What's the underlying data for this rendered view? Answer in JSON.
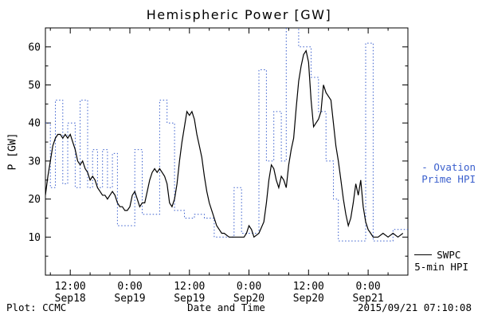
{
  "title": "Hemispheric Power [GW]",
  "ylabel": "P [GW]",
  "xlabel": "Date and Time",
  "footer": {
    "left": "Plot: CCMC",
    "right": "2015/09/21 07:10:08"
  },
  "legend": {
    "ovation": {
      "line1": "- Ovation",
      "line2": "Prime HPI",
      "color": "#3a5fcd"
    },
    "swpc": {
      "line1": "SWPC",
      "line2": "5-min HPI",
      "color": "#000000"
    }
  },
  "chart_data": {
    "type": "line",
    "title": "Hemispheric Power [GW]",
    "xlabel": "Date and Time",
    "ylabel": "P [GW]",
    "xlim": [
      0,
      73
    ],
    "ylim": [
      0,
      65
    ],
    "x_unit": "hours",
    "grid": false,
    "legend_position": "right-outside",
    "yticks": [
      10,
      20,
      30,
      40,
      50,
      60
    ],
    "y_minor": [
      5,
      15,
      25,
      35,
      45,
      55
    ],
    "xticks": [
      {
        "t": 5,
        "time": "12:00",
        "date": "Sep18"
      },
      {
        "t": 17,
        "time": "0:00",
        "date": "Sep19"
      },
      {
        "t": 29,
        "time": "12:00",
        "date": "Sep19"
      },
      {
        "t": 41,
        "time": "0:00",
        "date": "Sep20"
      },
      {
        "t": 53,
        "time": "12:00",
        "date": "Sep20"
      },
      {
        "t": 65,
        "time": "0:00",
        "date": "Sep21"
      }
    ],
    "x_minor": [
      1,
      9,
      13,
      21,
      25,
      33,
      37,
      45,
      49,
      57,
      61,
      69
    ],
    "series": [
      {
        "name": "Ovation Prime HPI",
        "color": "#3a5fcd",
        "interp": "step",
        "dash": "1.5 2.5",
        "width": 1,
        "points": [
          [
            0,
            40
          ],
          [
            1,
            23
          ],
          [
            2,
            46
          ],
          [
            3.5,
            24
          ],
          [
            4.5,
            40
          ],
          [
            6,
            23
          ],
          [
            7,
            46
          ],
          [
            8.5,
            23
          ],
          [
            9.5,
            33
          ],
          [
            10.5,
            23
          ],
          [
            11.5,
            33
          ],
          [
            12.5,
            23
          ],
          [
            13.5,
            32
          ],
          [
            14.5,
            13
          ],
          [
            17,
            13
          ],
          [
            18,
            33
          ],
          [
            19.5,
            16
          ],
          [
            21,
            16
          ],
          [
            23,
            46
          ],
          [
            24.5,
            40
          ],
          [
            26,
            17
          ],
          [
            28,
            15
          ],
          [
            30,
            16
          ],
          [
            32,
            15
          ],
          [
            34,
            10
          ],
          [
            36,
            10
          ],
          [
            38,
            23
          ],
          [
            39.5,
            11
          ],
          [
            41,
            11
          ],
          [
            43,
            54
          ],
          [
            44.5,
            30
          ],
          [
            46,
            43
          ],
          [
            47.5,
            30
          ],
          [
            48.5,
            66
          ],
          [
            51,
            60
          ],
          [
            53.5,
            52
          ],
          [
            55,
            43
          ],
          [
            56.5,
            30
          ],
          [
            58,
            20
          ],
          [
            59,
            9
          ],
          [
            63.5,
            9
          ],
          [
            64.5,
            61
          ],
          [
            66,
            9
          ],
          [
            68,
            9
          ],
          [
            70,
            12
          ],
          [
            72,
            12
          ]
        ]
      },
      {
        "name": "SWPC 5-min HPI",
        "color": "#000000",
        "interp": "linear",
        "dash": null,
        "width": 1.2,
        "points": [
          [
            0,
            21
          ],
          [
            0.5,
            26
          ],
          [
            1,
            30
          ],
          [
            1.5,
            34
          ],
          [
            2,
            36
          ],
          [
            2.5,
            37
          ],
          [
            3,
            37
          ],
          [
            3.5,
            36
          ],
          [
            4,
            37
          ],
          [
            4.5,
            36
          ],
          [
            5,
            37
          ],
          [
            5.5,
            35
          ],
          [
            6,
            33
          ],
          [
            6.5,
            30
          ],
          [
            7,
            29
          ],
          [
            7.5,
            30
          ],
          [
            8,
            28
          ],
          [
            8.5,
            27
          ],
          [
            9,
            25
          ],
          [
            9.5,
            26
          ],
          [
            10,
            25
          ],
          [
            10.5,
            23
          ],
          [
            11,
            22
          ],
          [
            11.5,
            21
          ],
          [
            12,
            21
          ],
          [
            12.5,
            20
          ],
          [
            13,
            21
          ],
          [
            13.5,
            22
          ],
          [
            14,
            21
          ],
          [
            14.5,
            19
          ],
          [
            15,
            18
          ],
          [
            15.5,
            18
          ],
          [
            16,
            17
          ],
          [
            16.5,
            17
          ],
          [
            17,
            18
          ],
          [
            17.5,
            21
          ],
          [
            18,
            22
          ],
          [
            18.5,
            20
          ],
          [
            19,
            18
          ],
          [
            19.5,
            19
          ],
          [
            20,
            19
          ],
          [
            20.5,
            22
          ],
          [
            21,
            25
          ],
          [
            21.5,
            27
          ],
          [
            22,
            28
          ],
          [
            22.5,
            27
          ],
          [
            23,
            28
          ],
          [
            23.5,
            27
          ],
          [
            24,
            26
          ],
          [
            24.5,
            24
          ],
          [
            25,
            19
          ],
          [
            25.5,
            18
          ],
          [
            26,
            20
          ],
          [
            26.5,
            24
          ],
          [
            27,
            30
          ],
          [
            27.5,
            35
          ],
          [
            28,
            39
          ],
          [
            28.5,
            43
          ],
          [
            29,
            42
          ],
          [
            29.5,
            43
          ],
          [
            30,
            41
          ],
          [
            30.5,
            37
          ],
          [
            31,
            34
          ],
          [
            31.5,
            31
          ],
          [
            32,
            26
          ],
          [
            32.5,
            22
          ],
          [
            33,
            19
          ],
          [
            33.5,
            17
          ],
          [
            34,
            15
          ],
          [
            34.5,
            13
          ],
          [
            35,
            12
          ],
          [
            35.5,
            11
          ],
          [
            36,
            11
          ],
          [
            37,
            10
          ],
          [
            38,
            10
          ],
          [
            39,
            10
          ],
          [
            40,
            10
          ],
          [
            40.5,
            11
          ],
          [
            41,
            13
          ],
          [
            41.5,
            12
          ],
          [
            42,
            10
          ],
          [
            43,
            11
          ],
          [
            44,
            14
          ],
          [
            44.5,
            19
          ],
          [
            45,
            25
          ],
          [
            45.5,
            29
          ],
          [
            46,
            28
          ],
          [
            46.5,
            25
          ],
          [
            47,
            23
          ],
          [
            47.5,
            26
          ],
          [
            48,
            25
          ],
          [
            48.5,
            23
          ],
          [
            49,
            29
          ],
          [
            49.5,
            33
          ],
          [
            50,
            36
          ],
          [
            50.5,
            44
          ],
          [
            51,
            51
          ],
          [
            51.5,
            55
          ],
          [
            52,
            58
          ],
          [
            52.5,
            59
          ],
          [
            53,
            56
          ],
          [
            53.5,
            46
          ],
          [
            54,
            39
          ],
          [
            54.5,
            40
          ],
          [
            55,
            41
          ],
          [
            55.5,
            43
          ],
          [
            56,
            50
          ],
          [
            56.5,
            48
          ],
          [
            57,
            47
          ],
          [
            57.5,
            46
          ],
          [
            58,
            40
          ],
          [
            58.5,
            34
          ],
          [
            59,
            30
          ],
          [
            59.5,
            25
          ],
          [
            60,
            20
          ],
          [
            60.5,
            16
          ],
          [
            61,
            13
          ],
          [
            61.5,
            15
          ],
          [
            62,
            19
          ],
          [
            62.5,
            24
          ],
          [
            63,
            21
          ],
          [
            63.5,
            25
          ],
          [
            64,
            18
          ],
          [
            64.5,
            14
          ],
          [
            65,
            12
          ],
          [
            65.5,
            11
          ],
          [
            66,
            10
          ],
          [
            67,
            10
          ],
          [
            68,
            11
          ],
          [
            69,
            10
          ],
          [
            70,
            11
          ],
          [
            71,
            10
          ],
          [
            72,
            11
          ]
        ]
      }
    ]
  }
}
